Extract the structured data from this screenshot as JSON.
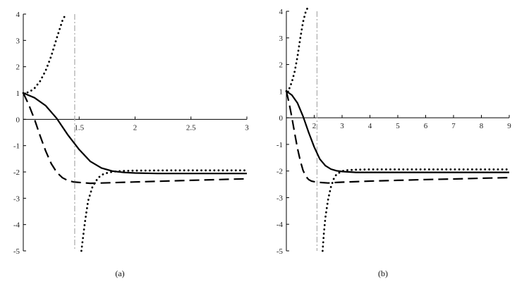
{
  "chart_data": [
    {
      "type": "line",
      "panel_label": "(a)",
      "xlim": [
        1,
        3
      ],
      "ylim": [
        -5,
        4
      ],
      "x_ticks": [
        1.5,
        2,
        2.5,
        3
      ],
      "x_tick_labels": [
        "1.5",
        "2",
        "2.5",
        "3"
      ],
      "y_ticks": [
        -5,
        -4,
        -3,
        -2,
        -1,
        0,
        1,
        2,
        3,
        4
      ],
      "y_tick_labels": [
        "-5",
        "-4",
        "-3",
        "-2",
        "-1",
        "0",
        "1",
        "2",
        "3",
        "4"
      ],
      "vline_x": 1.46,
      "series": [
        {
          "style": "solid",
          "x": [
            1,
            1.1,
            1.2,
            1.3,
            1.4,
            1.5,
            1.6,
            1.7,
            1.8,
            1.9,
            2.0,
            2.2,
            2.5,
            2.8,
            3.0
          ],
          "y": [
            1,
            0.82,
            0.52,
            0.03,
            -0.6,
            -1.15,
            -1.6,
            -1.85,
            -1.97,
            -2.02,
            -2.04,
            -2.06,
            -2.06,
            -2.06,
            -2.06
          ]
        },
        {
          "style": "dashed",
          "x": [
            1,
            1.05,
            1.1,
            1.15,
            1.2,
            1.25,
            1.3,
            1.35,
            1.4,
            1.45,
            1.5,
            1.6,
            1.7,
            2.0,
            2.5,
            3.0
          ],
          "y": [
            1,
            0.55,
            0.0,
            -0.62,
            -1.2,
            -1.68,
            -2.02,
            -2.22,
            -2.33,
            -2.38,
            -2.4,
            -2.43,
            -2.42,
            -2.38,
            -2.32,
            -2.26
          ]
        },
        {
          "style": "dotted",
          "x": [
            1,
            1.05,
            1.1,
            1.15,
            1.2,
            1.25,
            1.3,
            1.35,
            1.38
          ],
          "y": [
            1,
            1.03,
            1.18,
            1.45,
            1.85,
            2.4,
            3.1,
            3.75,
            4.0
          ]
        },
        {
          "style": "dotted",
          "x": [
            1.52,
            1.55,
            1.58,
            1.62,
            1.67,
            1.72,
            1.8,
            1.9,
            2.0,
            2.3,
            2.6,
            3.0
          ],
          "y": [
            -5.0,
            -3.95,
            -3.1,
            -2.55,
            -2.22,
            -2.07,
            -1.99,
            -1.96,
            -1.95,
            -1.94,
            -1.94,
            -1.94
          ]
        }
      ]
    },
    {
      "type": "line",
      "panel_label": "(b)",
      "xlim": [
        1,
        9
      ],
      "ylim": [
        -5,
        4
      ],
      "x_ticks": [
        2,
        3,
        4,
        5,
        6,
        7,
        8,
        9
      ],
      "x_tick_labels": [
        "2",
        "3",
        "4",
        "5",
        "6",
        "7",
        "8",
        "9"
      ],
      "y_ticks": [
        -5,
        -4,
        -3,
        -2,
        -1,
        0,
        1,
        2,
        3,
        4
      ],
      "y_tick_labels": [
        "-5",
        "-4",
        "-3",
        "-2",
        "-1",
        "0",
        "1",
        "2",
        "3",
        "4"
      ],
      "vline_x": 2.1,
      "series": [
        {
          "style": "solid",
          "x": [
            1,
            1.2,
            1.4,
            1.6,
            1.8,
            2.0,
            2.2,
            2.4,
            2.6,
            2.8,
            3.0,
            3.5,
            4.0,
            5,
            6,
            7,
            8,
            9
          ],
          "y": [
            1,
            0.85,
            0.55,
            0.05,
            -0.55,
            -1.1,
            -1.55,
            -1.8,
            -1.93,
            -1.99,
            -2.02,
            -2.05,
            -2.05,
            -2.05,
            -2.05,
            -2.05,
            -2.05,
            -2.05
          ]
        },
        {
          "style": "dashed",
          "x": [
            1,
            1.1,
            1.2,
            1.3,
            1.4,
            1.5,
            1.6,
            1.7,
            1.8,
            1.9,
            2.0,
            2.2,
            2.5,
            2.8,
            3.0,
            4,
            5,
            6,
            7,
            8,
            9
          ],
          "y": [
            1,
            0.55,
            0.0,
            -0.6,
            -1.15,
            -1.62,
            -1.98,
            -2.2,
            -2.32,
            -2.38,
            -2.4,
            -2.43,
            -2.45,
            -2.43,
            -2.42,
            -2.38,
            -2.35,
            -2.32,
            -2.3,
            -2.27,
            -2.25
          ]
        },
        {
          "style": "dotted",
          "x": [
            1,
            1.1,
            1.2,
            1.3,
            1.4,
            1.5,
            1.6,
            1.7,
            1.75
          ],
          "y": [
            1,
            1.08,
            1.35,
            1.75,
            2.3,
            3.0,
            3.6,
            4.0,
            4.1
          ]
        },
        {
          "style": "dotted",
          "x": [
            2.3,
            2.35,
            2.4,
            2.5,
            2.6,
            2.7,
            2.8,
            3.0,
            3.2,
            3.5,
            4,
            5,
            6,
            7,
            8,
            9
          ],
          "y": [
            -5.0,
            -4.3,
            -3.75,
            -3.05,
            -2.6,
            -2.3,
            -2.12,
            -2.0,
            -1.97,
            -1.95,
            -1.94,
            -1.94,
            -1.94,
            -1.94,
            -1.94,
            -1.94
          ]
        }
      ]
    }
  ]
}
